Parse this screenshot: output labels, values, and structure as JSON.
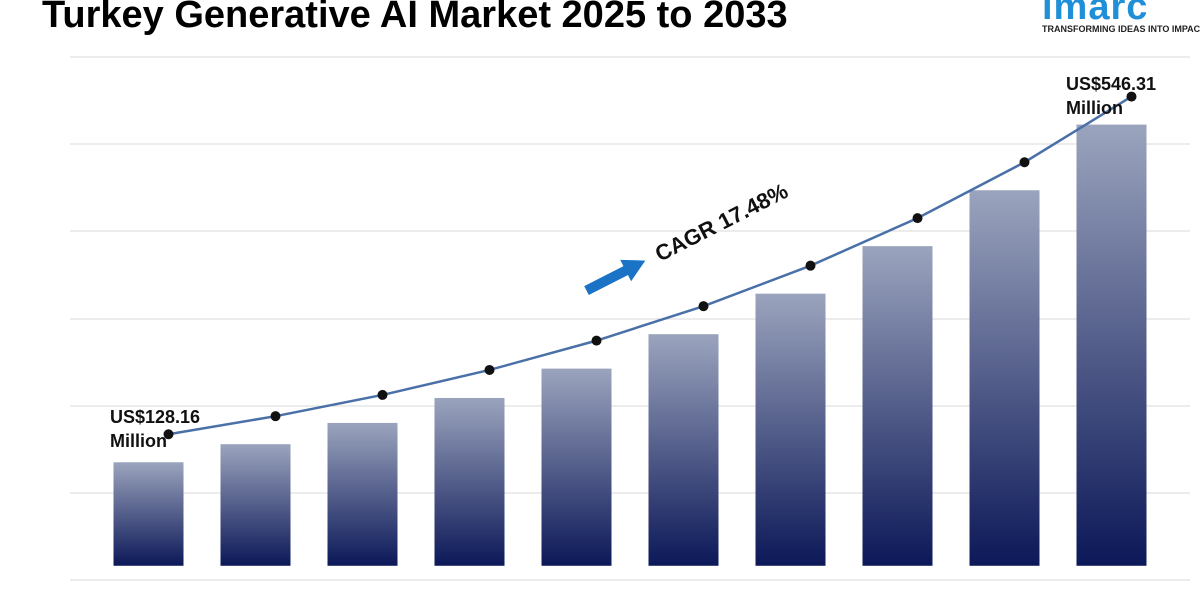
{
  "chart_data": {
    "type": "bar",
    "title": "Turkey Generative AI Market 2025 to 2033",
    "series": [
      {
        "name": "Market size",
        "color": "#0c1858",
        "line_color": "#4a70a8",
        "values": [
          128.16,
          150.56,
          176.88,
          207.8,
          244.12,
          286.79,
          336.92,
          395.81,
          465.0,
          546.31
        ]
      }
    ],
    "ylim": [
      -30,
      630
    ],
    "annotations": [
      "US$128.16 Million",
      "US$546.31 Million",
      "CAGR 17.48%"
    ]
  },
  "logo": {
    "name": "imarc",
    "tagline": "TRANSFORMING IDEAS INTO IMPACT"
  }
}
